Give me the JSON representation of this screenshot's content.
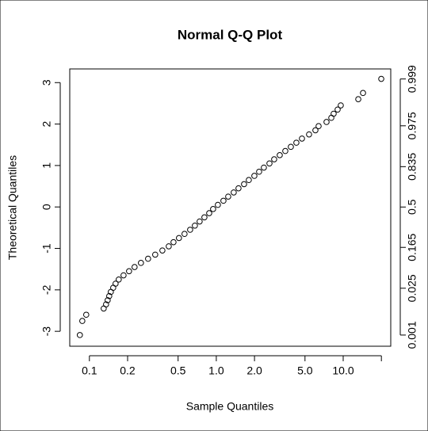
{
  "chart_data": {
    "type": "scatter",
    "title": "Normal Q-Q Plot",
    "x_label": "Sample Quantiles",
    "y_label": "Theoretical Quantiles",
    "xscale": "log",
    "y2scale": "probit",
    "xlim": [
      0.07,
      23.7
    ],
    "ylim": [
      -3.36,
      3.33
    ],
    "y2lim": [
      0.00039,
      0.99957
    ],
    "xticks": [
      0.1,
      0.2,
      0.5,
      {
        "value": 1,
        "label": "1.0"
      },
      {
        "value": 2,
        "label": "2.0"
      },
      {
        "value": 5,
        "label": "5.0"
      },
      {
        "value": 10,
        "label": "10.0"
      },
      {
        "value": 20,
        "label": null
      }
    ],
    "yticks": [
      -3,
      -2,
      -1,
      0,
      1,
      2,
      3
    ],
    "y2ticks": [
      0.001,
      0.025,
      0.165,
      0.5,
      0.835,
      0.975,
      0.999
    ],
    "series": [
      {
        "color": "#000000",
        "x": [
          0.0841,
          0.0879,
          0.0944,
          0.1296,
          0.1353,
          0.1393,
          0.1433,
          0.1475,
          0.154,
          0.1608,
          0.1703,
          0.1858,
          0.2054,
          0.227,
          0.2548,
          0.29,
          0.33,
          0.376,
          0.422,
          0.46,
          0.508,
          0.562,
          0.622,
          0.678,
          0.739,
          0.806,
          0.879,
          0.944,
          1.029,
          1.138,
          1.241,
          1.372,
          1.496,
          1.655,
          1.804,
          1.995,
          2.175,
          2.371,
          2.624,
          2.858,
          3.162,
          3.497,
          3.868,
          4.276,
          4.732,
          5.383,
          6.04,
          6.4,
          7.39,
          8.06,
          8.41,
          9.04,
          9.57,
          13.15,
          14.33,
          19.95
        ],
        "values": [
          -3.09,
          -2.75,
          -2.6,
          -2.45,
          -2.35,
          -2.25,
          -2.15,
          -2.05,
          -1.95,
          -1.85,
          -1.75,
          -1.65,
          -1.55,
          -1.45,
          -1.35,
          -1.25,
          -1.15,
          -1.05,
          -0.95,
          -0.85,
          -0.75,
          -0.65,
          -0.55,
          -0.45,
          -0.35,
          -0.25,
          -0.15,
          -0.05,
          0.05,
          0.15,
          0.25,
          0.35,
          0.45,
          0.55,
          0.65,
          0.75,
          0.85,
          0.95,
          1.05,
          1.15,
          1.25,
          1.35,
          1.45,
          1.55,
          1.65,
          1.75,
          1.85,
          1.95,
          2.05,
          2.15,
          2.25,
          2.35,
          2.45,
          2.6,
          2.75,
          3.09
        ]
      }
    ]
  }
}
